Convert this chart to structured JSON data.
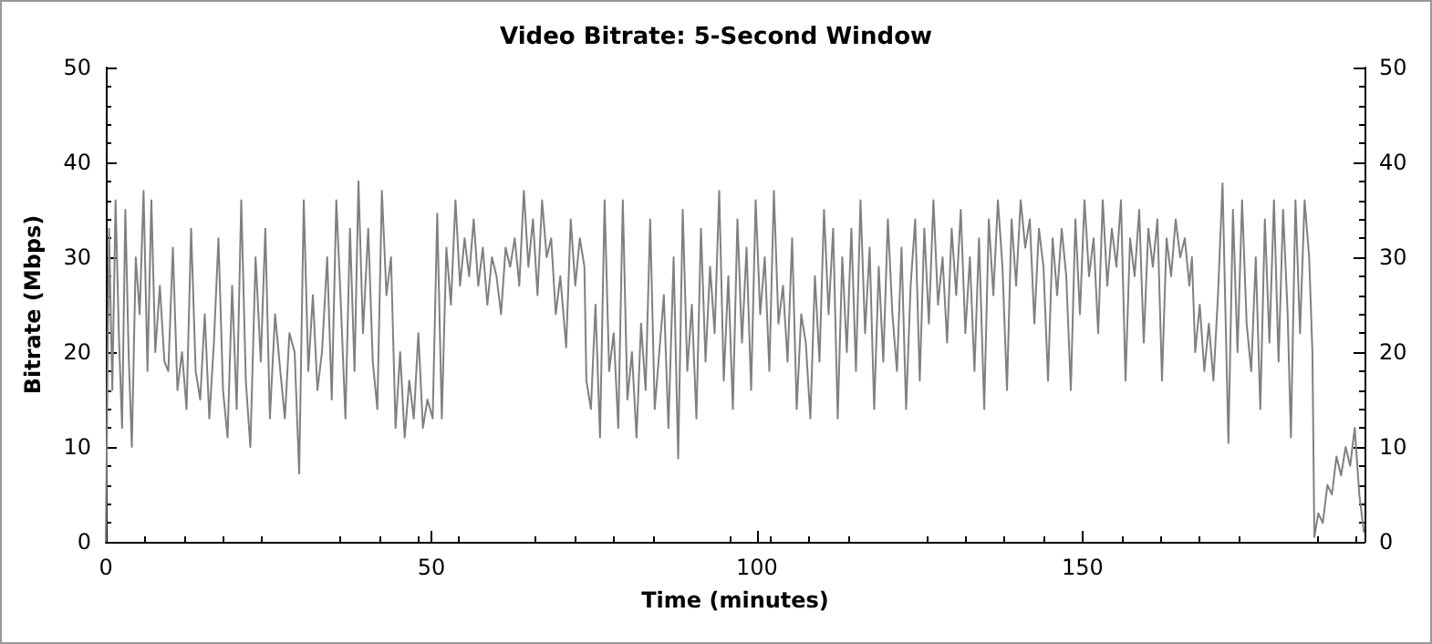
{
  "chart_data": {
    "type": "line",
    "title": "Video Bitrate: 5-Second Window",
    "xlabel": "Time (minutes)",
    "ylabel": "Bitrate (Mbps)",
    "xlim": [
      0,
      193.3
    ],
    "xticks": [
      0,
      50,
      100,
      150
    ],
    "ylim": [
      0,
      50
    ],
    "yticks": [
      0,
      10,
      20,
      30,
      40,
      50
    ],
    "y2lim": [
      0,
      50
    ],
    "y2ticks": [
      0,
      10,
      20,
      30,
      40,
      50
    ],
    "grid": false,
    "x": [
      0,
      0.5,
      1,
      1.5,
      2,
      2.5,
      3,
      3.5,
      4,
      4.6,
      5.2,
      5.8,
      6.4,
      7,
      7.6,
      8.3,
      9,
      9.6,
      10.3,
      11,
      11.7,
      12.4,
      13.1,
      13.8,
      14.5,
      15.2,
      15.9,
      16.6,
      17.3,
      18,
      18.7,
      19.4,
      20.1,
      20.8,
      21.5,
      22.2,
      23,
      23.8,
      24.5,
      25.2,
      26,
      26.8,
      27.5,
      28.2,
      29,
      29.7,
      30.4,
      31.1,
      31.8,
      32.5,
      33.2,
      34,
      34.7,
      35.4,
      36.1,
      36.8,
      37.5,
      38.2,
      38.8,
      39.5,
      40.3,
      41,
      41.7,
      42.4,
      43.1,
      43.8,
      44.5,
      45.2,
      45.9,
      46.6,
      47.3,
      48,
      48.7,
      49.4,
      50.2,
      50.9,
      51.6,
      52.3,
      53,
      53.7,
      54.4,
      55.1,
      55.8,
      56.5,
      57.2,
      57.9,
      58.6,
      59.3,
      60,
      60.7,
      61.4,
      62.1,
      62.8,
      63.5,
      64.2,
      64.9,
      65.6,
      66.3,
      67,
      67.7,
      68.4,
      69.1,
      69.8,
      70.7,
      71.4,
      72.1,
      72.8,
      73.5,
      73.8,
      74.5,
      75.2,
      75.9,
      76.6,
      77.3,
      78,
      78.7,
      79.4,
      80.1,
      80.8,
      81.5,
      82.2,
      82.9,
      83.6,
      84.3,
      85,
      85.7,
      86.4,
      87.2,
      87.9,
      88.6,
      89.3,
      90,
      90.7,
      91.4,
      92.1,
      92.8,
      93.5,
      94.2,
      94.9,
      95.6,
      96.3,
      97,
      97.7,
      98.4,
      99.1,
      99.8,
      100.5,
      101.2,
      101.9,
      102.6,
      103.3,
      104,
      104.7,
      105.4,
      106.1,
      106.8,
      107.5,
      108.2,
      108.9,
      109.6,
      110.3,
      111,
      111.7,
      112.4,
      113.1,
      113.8,
      114.5,
      115.2,
      115.9,
      116.6,
      117.3,
      118,
      118.7,
      119.4,
      120.1,
      120.8,
      121.5,
      122.2,
      122.9,
      123.6,
      124.3,
      125,
      125.7,
      126.4,
      127.1,
      127.8,
      128.5,
      129.2,
      129.9,
      130.6,
      131.3,
      132,
      132.7,
      133.4,
      134.1,
      134.9,
      135.6,
      136.3,
      137,
      137.7,
      138.4,
      139.1,
      139.8,
      140.5,
      141.2,
      141.9,
      142.6,
      143.3,
      144,
      144.7,
      145.4,
      146.1,
      146.8,
      147.5,
      148.2,
      148.9,
      149.6,
      150.3,
      151,
      151.7,
      152.4,
      153.1,
      153.8,
      154.5,
      155.2,
      155.9,
      156.6,
      157.3,
      158,
      158.7,
      159.4,
      160.1,
      160.8,
      161.5,
      162.2,
      162.9,
      163.6,
      164.3,
      165,
      165.7,
      166.4,
      166.8,
      167.3,
      168,
      168.7,
      169.4,
      170.1,
      170.8,
      171.5,
      172.4,
      173.1,
      173.8,
      174.5,
      175.2,
      175.9,
      176.6,
      177.3,
      178,
      178.7,
      179.4,
      180.1,
      180.8,
      181.5,
      182,
      182.7,
      183.4,
      184.1,
      184.8,
      185.3,
      185.6,
      186.2,
      186.9,
      187.6,
      188.3,
      189,
      189.7,
      190.4,
      191.1,
      191.8,
      192.5,
      193.2
    ],
    "series": [
      {
        "color": "#808080",
        "values": [
          0,
          33,
          16,
          36,
          22,
          12,
          35,
          20,
          10,
          30,
          24,
          37,
          18,
          36,
          20,
          27,
          19,
          18,
          31,
          16,
          20,
          14,
          33,
          18,
          15,
          24,
          13,
          21,
          32,
          16,
          11,
          27,
          14,
          36,
          17,
          10,
          30,
          19,
          33,
          13,
          24,
          18,
          13,
          22,
          20,
          7.2,
          36,
          18,
          26,
          16,
          20,
          30,
          15,
          36,
          25,
          13,
          33,
          18,
          38,
          22,
          33,
          19,
          14,
          37,
          26,
          30,
          12,
          20,
          11,
          17,
          13,
          22,
          12,
          15,
          13,
          34.6,
          13,
          31,
          25,
          36,
          27,
          32,
          28,
          34,
          27,
          31,
          25,
          30,
          28,
          24,
          31,
          29,
          32,
          27,
          37,
          29,
          34,
          26,
          36,
          30,
          32,
          24,
          28,
          20.5,
          34,
          27,
          32,
          29,
          17,
          14,
          25,
          11,
          36,
          18,
          22,
          12,
          36,
          15,
          20,
          11,
          23,
          16,
          34,
          14,
          20,
          26,
          12,
          30,
          8.8,
          35,
          18,
          25,
          13,
          33,
          19,
          29,
          22,
          37,
          17,
          28,
          14,
          34,
          21,
          31,
          16,
          36,
          24,
          30,
          18,
          37,
          23,
          27,
          19,
          32,
          14,
          24,
          21,
          13,
          28,
          19,
          35,
          24,
          33,
          13,
          30,
          20,
          33,
          18,
          36,
          22,
          31,
          14,
          29,
          19,
          34,
          24,
          18,
          31,
          14,
          27,
          34,
          17,
          33,
          23,
          36,
          25,
          30,
          21,
          33,
          26,
          35,
          22,
          30,
          18,
          32,
          14,
          34,
          26,
          36,
          29,
          16,
          34,
          27,
          36,
          31,
          34,
          23,
          33,
          29,
          17,
          32,
          26,
          33,
          28,
          16,
          34,
          24,
          36,
          28,
          32,
          22,
          36,
          27,
          33,
          29,
          36,
          17,
          32,
          28,
          35,
          21,
          33,
          29,
          34,
          17,
          32,
          28,
          34,
          30,
          32,
          27,
          30,
          20,
          25,
          18,
          23,
          17,
          26,
          37.8,
          10.4,
          35,
          20,
          36,
          23,
          18,
          30,
          14,
          34,
          21,
          36,
          19,
          35,
          24,
          11,
          36,
          22,
          36,
          30,
          20,
          0.5,
          3,
          2,
          6,
          5,
          9,
          7,
          10,
          8,
          12,
          5,
          1
        ]
      }
    ]
  }
}
